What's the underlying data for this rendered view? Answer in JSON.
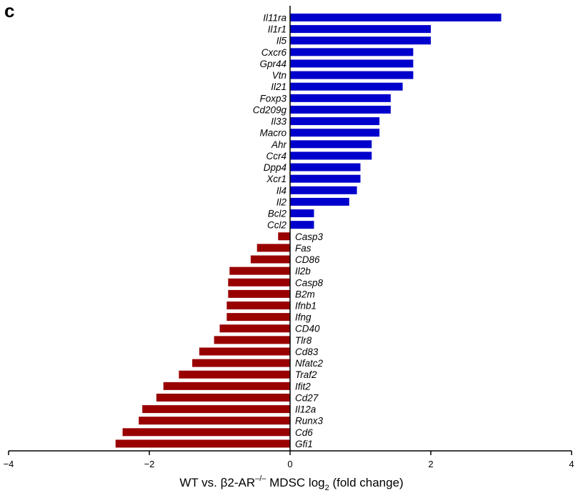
{
  "panel_label": "c",
  "chart_data": {
    "type": "bar",
    "orientation": "horizontal",
    "categories": [
      "Il11ra",
      "Il1r1",
      "Il5",
      "Cxcr6",
      "Gpr44",
      "Vtn",
      "Il21",
      "Foxp3",
      "Cd209g",
      "Il33",
      "Macro",
      "Ahr",
      "Ccr4",
      "Dpp4",
      "Xcr1",
      "Il4",
      "Il2",
      "Bcl2",
      "Ccl2",
      "Casp3",
      "Fas",
      "CD86",
      "Il2b",
      "Casp8",
      "B2m",
      "Ifnb1",
      "Ifng",
      "CD40",
      "Tlr8",
      "Cd83",
      "Nfatc2",
      "Traf2",
      "Ifit2",
      "Cd27",
      "Il12a",
      "Runx3",
      "Cd6",
      "Gfi1"
    ],
    "values": [
      3.0,
      2.0,
      2.0,
      1.75,
      1.75,
      1.75,
      1.6,
      1.43,
      1.43,
      1.27,
      1.27,
      1.16,
      1.16,
      1.0,
      1.0,
      0.95,
      0.84,
      0.34,
      0.34,
      -0.17,
      -0.47,
      -0.56,
      -0.86,
      -0.88,
      -0.88,
      -0.9,
      -0.9,
      -1.0,
      -1.08,
      -1.29,
      -1.39,
      -1.58,
      -1.8,
      -1.9,
      -2.1,
      -2.15,
      -2.38,
      -2.48
    ],
    "positive_color": "#0000cc",
    "negative_color": "#990000",
    "xlim": [
      -4,
      4
    ],
    "xticks": [
      "−4",
      "−2",
      "0",
      "2",
      "4"
    ],
    "xtick_values": [
      -4,
      -2,
      0,
      2,
      4
    ],
    "xlabel": {
      "pre": "WT vs. β2-AR",
      "sup": "–/–",
      "mid": " MDSC log",
      "sub": "2",
      "post": " (fold change)"
    }
  }
}
